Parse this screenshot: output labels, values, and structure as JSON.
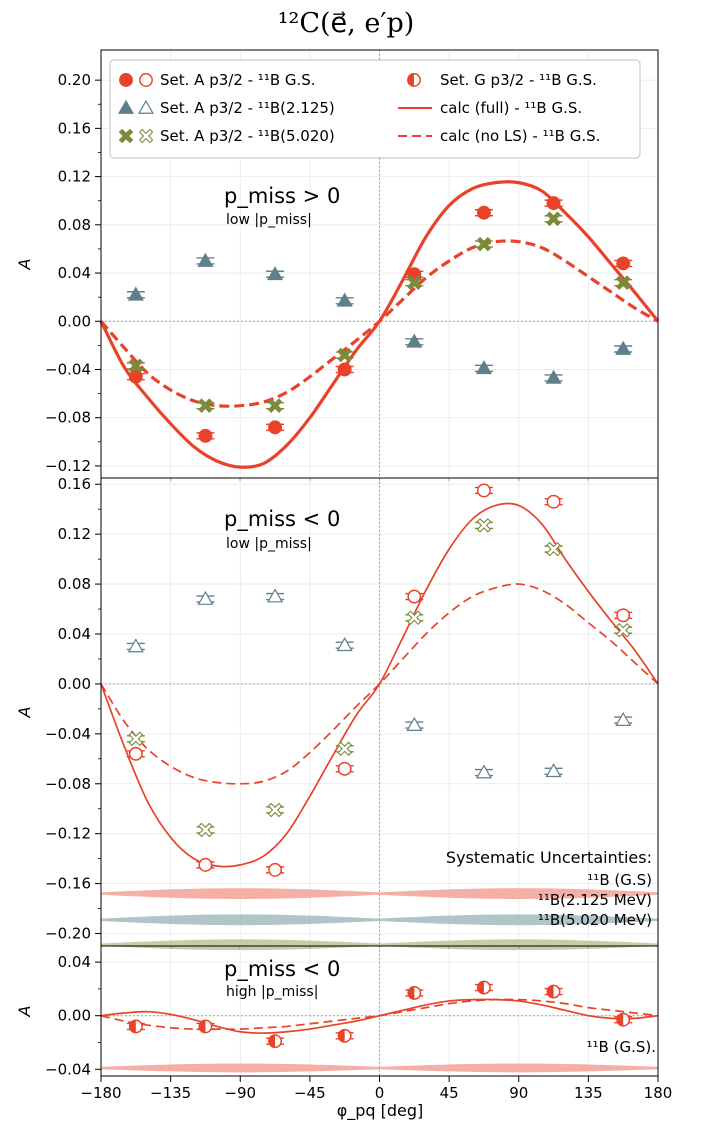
{
  "figure": {
    "title": "¹²C(e⃗, e′p)",
    "xlabel": "φ_pq [deg]",
    "ylabel": "A",
    "x_ticks": [
      -180,
      -135,
      -90,
      -45,
      0,
      45,
      90,
      135,
      180
    ],
    "x_tick_labels": [
      "−180",
      "−135",
      "−90",
      "−45",
      "0",
      "45",
      "90",
      "135",
      "180"
    ]
  },
  "legend": {
    "entries": [
      {
        "label": "Set. A p3/2 - ¹¹B G.S."
      },
      {
        "label": "Set. A p3/2 - ¹¹B(2.125)"
      },
      {
        "label": "Set. A p3/2 - ¹¹B(5.020)"
      },
      {
        "label": "Set. G p3/2 - ¹¹B G.S."
      },
      {
        "label": "calc (full) - ¹¹B G.S."
      },
      {
        "label": "calc (no LS) - ¹¹B G.S."
      }
    ]
  },
  "colors": {
    "red": "#e8432a",
    "slate": "#5e808a",
    "olive": "#7a8b3a",
    "band_red": "#f3a79c",
    "band_slate": "#a9bec2",
    "band_olive": "#c2c79a"
  },
  "panels": [
    {
      "annotation_main": "p_miss > 0",
      "annotation_sub": "low |p_miss|",
      "y_ticks": [
        -0.12,
        -0.08,
        -0.04,
        0.0,
        0.04,
        0.08,
        0.12,
        0.16,
        0.2
      ],
      "y_tick_labels": [
        "−0.12",
        "−0.08",
        "−0.04",
        "0.00",
        "0.04",
        "0.08",
        "0.12",
        "0.16",
        "0.20"
      ]
    },
    {
      "annotation_main": "p_miss < 0",
      "annotation_sub": "low |p_miss|",
      "y_ticks": [
        -0.2,
        -0.16,
        -0.12,
        -0.08,
        -0.04,
        0.0,
        0.04,
        0.08,
        0.12,
        0.16
      ],
      "y_tick_labels": [
        "−0.20",
        "−0.16",
        "−0.12",
        "−0.08",
        "−0.04",
        "0.00",
        "0.04",
        "0.08",
        "0.12",
        "0.16"
      ],
      "sys_title": "Systematic Uncertainties:",
      "sys_labels": [
        "¹¹B (G.S)",
        "¹¹B(2.125 MeV)",
        "¹¹B(5.020 MeV)"
      ]
    },
    {
      "annotation_main": "p_miss < 0",
      "annotation_sub": "high |p_miss|",
      "y_ticks": [
        -0.04,
        0.0,
        0.04
      ],
      "y_tick_labels": [
        "−0.04",
        "0.00",
        "0.04"
      ],
      "sys_labels": [
        "¹¹B (G.S)."
      ]
    }
  ],
  "chart_data": [
    {
      "type": "scatter",
      "title": "",
      "xlabel": "",
      "ylabel": "A",
      "xlim": [
        -180,
        180
      ],
      "ylim": [
        -0.13,
        0.225
      ],
      "grid": true,
      "legend_position": "top",
      "series": [
        {
          "name": "Set. A p3/2 - ¹¹B G.S.",
          "marker": "circle-filled",
          "color": "#e8432a",
          "x": [
            -157.5,
            -112.5,
            -67.5,
            -22.5,
            22.5,
            67.5,
            112.5,
            157.5
          ],
          "y": [
            -0.046,
            -0.095,
            -0.088,
            -0.04,
            0.039,
            0.09,
            0.098,
            0.048
          ]
        },
        {
          "name": "Set. A p3/2 - ¹¹B(2.125)",
          "marker": "triangle-filled",
          "color": "#5e808a",
          "x": [
            -157.5,
            -112.5,
            -67.5,
            -22.5,
            22.5,
            67.5,
            112.5,
            157.5
          ],
          "y": [
            0.022,
            0.05,
            0.039,
            0.017,
            -0.017,
            -0.039,
            -0.047,
            -0.023
          ]
        },
        {
          "name": "Set. A p3/2 - ¹¹B(5.020)",
          "marker": "x-filled",
          "color": "#7a8b3a",
          "x": [
            -157.5,
            -112.5,
            -67.5,
            -22.5,
            22.5,
            67.5,
            112.5,
            157.5
          ],
          "y": [
            -0.037,
            -0.07,
            -0.07,
            -0.028,
            0.032,
            0.064,
            0.085,
            0.032
          ]
        },
        {
          "name": "calc (full) - ¹¹B G.S.",
          "style": "solid-thick",
          "color": "#e8432a",
          "x": [
            -180,
            -165,
            -150,
            -135,
            -120,
            -105,
            -90,
            -75,
            -60,
            -45,
            -30,
            -15,
            0,
            15,
            30,
            45,
            60,
            75,
            90,
            105,
            120,
            135,
            150,
            165,
            180
          ],
          "y": [
            0.0,
            -0.038,
            -0.063,
            -0.085,
            -0.104,
            -0.116,
            -0.121,
            -0.118,
            -0.103,
            -0.08,
            -0.052,
            -0.024,
            0.0,
            0.034,
            0.07,
            0.096,
            0.11,
            0.115,
            0.115,
            0.108,
            0.09,
            0.07,
            0.047,
            0.024,
            0.0
          ]
        },
        {
          "name": "calc (no LS) - ¹¹B G.S.",
          "style": "dashed-thick",
          "color": "#e8432a",
          "x": [
            -180,
            -165,
            -150,
            -135,
            -120,
            -105,
            -90,
            -75,
            -60,
            -45,
            -30,
            -15,
            0,
            15,
            30,
            45,
            60,
            75,
            90,
            105,
            120,
            135,
            150,
            165,
            180
          ],
          "y": [
            0.0,
            -0.022,
            -0.043,
            -0.057,
            -0.066,
            -0.07,
            -0.07,
            -0.067,
            -0.059,
            -0.046,
            -0.031,
            -0.016,
            0.0,
            0.018,
            0.036,
            0.05,
            0.061,
            0.066,
            0.066,
            0.061,
            0.05,
            0.037,
            0.024,
            0.011,
            0.0
          ]
        }
      ]
    },
    {
      "type": "scatter",
      "title": "",
      "xlabel": "",
      "ylabel": "A",
      "xlim": [
        -180,
        180
      ],
      "ylim": [
        -0.21,
        0.165
      ],
      "grid": true,
      "series": [
        {
          "name": "Set. A p3/2 - ¹¹B G.S.",
          "marker": "circle-open",
          "color": "#e8432a",
          "x": [
            -157.5,
            -112.5,
            -67.5,
            -22.5,
            22.5,
            67.5,
            112.5,
            157.5
          ],
          "y": [
            -0.056,
            -0.145,
            -0.149,
            -0.068,
            0.07,
            0.155,
            0.146,
            0.055
          ]
        },
        {
          "name": "Set. A p3/2 - ¹¹B(2.125)",
          "marker": "triangle-open",
          "color": "#5e808a",
          "x": [
            -157.5,
            -112.5,
            -67.5,
            -22.5,
            22.5,
            67.5,
            112.5,
            157.5
          ],
          "y": [
            0.03,
            0.068,
            0.07,
            0.031,
            -0.033,
            -0.071,
            -0.07,
            -0.029
          ]
        },
        {
          "name": "Set. A p3/2 - ¹¹B(5.020)",
          "marker": "x-open",
          "color": "#7a8b3a",
          "x": [
            -157.5,
            -112.5,
            -67.5,
            -22.5,
            22.5,
            67.5,
            112.5,
            157.5
          ],
          "y": [
            -0.044,
            -0.117,
            -0.101,
            -0.052,
            0.053,
            0.127,
            0.108,
            0.043
          ]
        },
        {
          "name": "calc (full) - ¹¹B G.S.",
          "style": "solid",
          "color": "#e8432a",
          "x": [
            -180,
            -165,
            -150,
            -135,
            -120,
            -105,
            -90,
            -75,
            -60,
            -45,
            -30,
            -15,
            0,
            15,
            30,
            45,
            60,
            75,
            90,
            105,
            120,
            135,
            150,
            165,
            180
          ],
          "y": [
            0.0,
            -0.05,
            -0.094,
            -0.123,
            -0.14,
            -0.146,
            -0.145,
            -0.138,
            -0.12,
            -0.09,
            -0.057,
            -0.025,
            0.0,
            0.037,
            0.075,
            0.108,
            0.132,
            0.143,
            0.143,
            0.128,
            0.1,
            0.074,
            0.05,
            0.027,
            0.0
          ]
        },
        {
          "name": "calc (no LS) - ¹¹B G.S.",
          "style": "dashed",
          "color": "#e8432a",
          "x": [
            -180,
            -165,
            -150,
            -135,
            -120,
            -105,
            -90,
            -75,
            -60,
            -45,
            -30,
            -15,
            0,
            15,
            30,
            45,
            60,
            75,
            90,
            105,
            120,
            135,
            150,
            165,
            180
          ],
          "y": [
            0.0,
            -0.03,
            -0.052,
            -0.066,
            -0.075,
            -0.079,
            -0.08,
            -0.078,
            -0.07,
            -0.055,
            -0.037,
            -0.018,
            0.0,
            0.02,
            0.04,
            0.057,
            0.07,
            0.077,
            0.08,
            0.075,
            0.064,
            0.049,
            0.034,
            0.017,
            0.0
          ]
        }
      ],
      "systematic_bands": [
        {
          "label": "¹¹B (G.S)",
          "center": -0.168,
          "color": "#f3a79c"
        },
        {
          "label": "¹¹B(2.125 MeV)",
          "center": -0.189,
          "color": "#a9bec2"
        },
        {
          "label": "¹¹B(5.020 MeV)",
          "center": -0.209,
          "color": "#c2c79a"
        }
      ]
    },
    {
      "type": "scatter",
      "title": "",
      "xlabel": "φ_pq [deg]",
      "ylabel": "A",
      "xlim": [
        -180,
        180
      ],
      "ylim": [
        -0.045,
        0.052
      ],
      "grid": true,
      "series": [
        {
          "name": "Set. G p3/2 - ¹¹B G.S.",
          "marker": "circle-half",
          "color": "#e8432a",
          "x": [
            -157.5,
            -112.5,
            -67.5,
            -22.5,
            22.5,
            67.5,
            112.5,
            157.5
          ],
          "y": [
            -0.008,
            -0.008,
            -0.019,
            -0.015,
            0.017,
            0.021,
            0.018,
            -0.003
          ]
        },
        {
          "name": "calc (full) - ¹¹B G.S.",
          "style": "solid",
          "color": "#e8432a",
          "x": [
            -180,
            -165,
            -150,
            -135,
            -120,
            -105,
            -90,
            -75,
            -60,
            -45,
            -30,
            -15,
            0,
            15,
            30,
            45,
            60,
            75,
            90,
            105,
            120,
            135,
            150,
            165,
            180
          ],
          "y": [
            0.0,
            0.002,
            0.003,
            0.001,
            -0.003,
            -0.008,
            -0.012,
            -0.013,
            -0.012,
            -0.01,
            -0.007,
            -0.004,
            0.0,
            0.004,
            0.008,
            0.011,
            0.012,
            0.012,
            0.011,
            0.008,
            0.004,
            0.0,
            -0.002,
            -0.002,
            0.0
          ]
        },
        {
          "name": "calc (no LS) - ¹¹B G.S.",
          "style": "dashed",
          "color": "#e8432a",
          "x": [
            -180,
            -165,
            -150,
            -135,
            -120,
            -105,
            -90,
            -75,
            -60,
            -45,
            -30,
            -15,
            0,
            15,
            30,
            45,
            60,
            75,
            90,
            105,
            120,
            135,
            150,
            165,
            180
          ],
          "y": [
            0.0,
            -0.004,
            -0.007,
            -0.009,
            -0.01,
            -0.01,
            -0.01,
            -0.009,
            -0.008,
            -0.006,
            -0.004,
            -0.002,
            0.0,
            0.003,
            0.006,
            0.009,
            0.011,
            0.012,
            0.012,
            0.011,
            0.009,
            0.006,
            0.004,
            0.002,
            0.0
          ]
        }
      ],
      "systematic_bands": [
        {
          "label": "¹¹B (G.S).",
          "center": -0.039,
          "color": "#f3a79c"
        }
      ]
    }
  ]
}
